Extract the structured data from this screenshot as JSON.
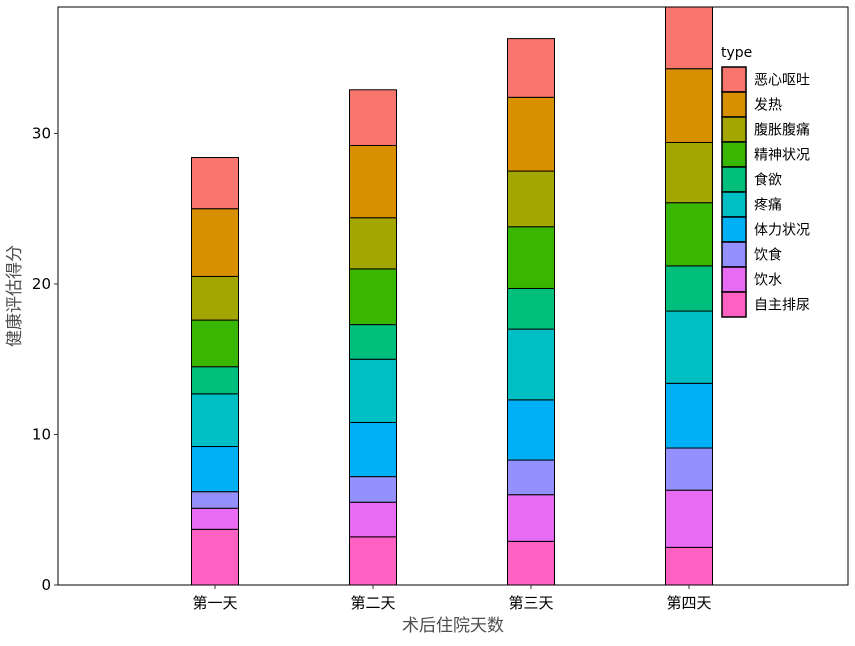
{
  "chart_data": {
    "type": "bar",
    "stacked": true,
    "xlabel": "术后住院天数",
    "ylabel": "健康评估得分",
    "ylim": [
      0,
      38.4
    ],
    "yticks": [
      0,
      10,
      20,
      30
    ],
    "categories": [
      "第一天",
      "第二天",
      "第三天",
      "第四天"
    ],
    "legend_title": "type",
    "legend_position": "right",
    "grid": false,
    "series": [
      {
        "name": "自主排尿",
        "color": "#FF61C3",
        "values": [
          3.7,
          3.2,
          2.9,
          2.5
        ]
      },
      {
        "name": "饮水",
        "color": "#E76BF3",
        "values": [
          1.4,
          2.3,
          3.1,
          3.8
        ]
      },
      {
        "name": "饮食",
        "color": "#9590FF",
        "values": [
          1.1,
          1.7,
          2.3,
          2.8
        ]
      },
      {
        "name": "体力状况",
        "color": "#00B0F6",
        "values": [
          3.0,
          3.6,
          4.0,
          4.3
        ]
      },
      {
        "name": "疼痛",
        "color": "#00BFC4",
        "values": [
          3.5,
          4.2,
          4.7,
          4.8
        ]
      },
      {
        "name": "食欲",
        "color": "#00BF7D",
        "values": [
          1.8,
          2.3,
          2.7,
          3.0
        ]
      },
      {
        "name": "精神状况",
        "color": "#39B600",
        "values": [
          3.1,
          3.7,
          4.1,
          4.2
        ]
      },
      {
        "name": "腹胀腹痛",
        "color": "#A3A500",
        "values": [
          2.9,
          3.4,
          3.7,
          4.0
        ]
      },
      {
        "name": "发热",
        "color": "#D89000",
        "values": [
          4.5,
          4.8,
          4.9,
          4.9
        ]
      },
      {
        "name": "恶心呕吐",
        "color": "#F8766D",
        "values": [
          3.4,
          3.7,
          3.9,
          4.1
        ]
      }
    ]
  }
}
